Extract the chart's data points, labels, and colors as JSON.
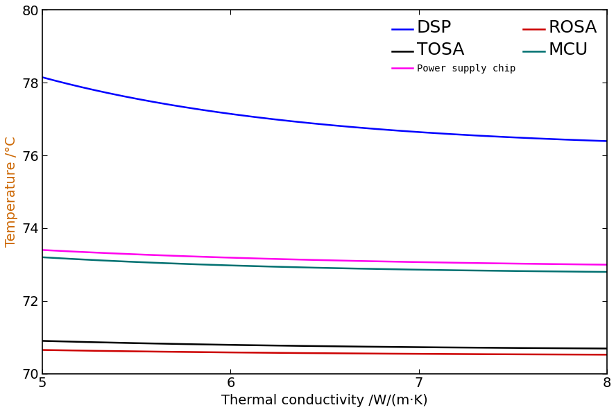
{
  "x_start": 5,
  "x_end": 8,
  "colors": {
    "DSP": "#0000ff",
    "power_supply": "#ff00ee",
    "MCU": "#007070",
    "TOSA": "#000000",
    "ROSA": "#cc0000"
  },
  "dsp_params": [
    78.15,
    2.0,
    0.7
  ],
  "ps_params": [
    73.4,
    0.5,
    0.55
  ],
  "mcu_params": [
    73.2,
    0.47,
    0.65
  ],
  "tosa_params": [
    70.9,
    0.26,
    0.55
  ],
  "rosa_params": [
    70.65,
    0.16,
    0.55
  ],
  "xlim": [
    5,
    8
  ],
  "ylim": [
    70,
    80
  ],
  "xlabel": "Thermal conductivity /W/(m·K)",
  "ylabel": "Temperature /°C",
  "xticks": [
    5,
    6,
    7,
    8
  ],
  "yticks": [
    70,
    72,
    74,
    76,
    78,
    80
  ],
  "legend_labels": {
    "DSP": "DSP",
    "power_supply": "Power supply chip",
    "MCU": "MCU",
    "TOSA": "TOSA",
    "ROSA": "ROSA"
  },
  "ylabel_color": "#cc6600",
  "axis_label_fontsize": 14,
  "tick_label_fontsize": 14,
  "legend_large_fontsize": 18,
  "legend_small_fontsize": 10,
  "linewidth": 1.8
}
